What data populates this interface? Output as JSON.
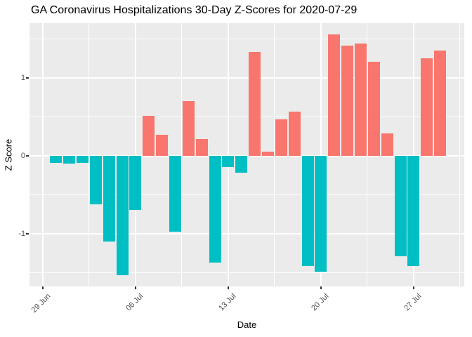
{
  "chart_data": {
    "type": "bar",
    "title": "GA Coronavirus Hospitalizations 30-Day Z-Scores for 2020-07-29",
    "xlabel": "Date",
    "ylabel": "Z Score",
    "x": [
      "2020-06-30",
      "2020-07-01",
      "2020-07-02",
      "2020-07-03",
      "2020-07-04",
      "2020-07-05",
      "2020-07-06",
      "2020-07-07",
      "2020-07-08",
      "2020-07-09",
      "2020-07-10",
      "2020-07-11",
      "2020-07-12",
      "2020-07-13",
      "2020-07-14",
      "2020-07-15",
      "2020-07-16",
      "2020-07-17",
      "2020-07-18",
      "2020-07-19",
      "2020-07-20",
      "2020-07-21",
      "2020-07-22",
      "2020-07-23",
      "2020-07-24",
      "2020-07-25",
      "2020-07-26",
      "2020-07-27",
      "2020-07-28",
      "2020-07-29"
    ],
    "values": [
      -0.09,
      -0.1,
      -0.09,
      -0.62,
      -1.1,
      -1.53,
      -0.69,
      0.51,
      0.27,
      -0.97,
      0.7,
      0.22,
      -1.37,
      -0.14,
      -0.22,
      1.33,
      0.05,
      0.47,
      0.57,
      -1.41,
      -1.49,
      1.56,
      1.41,
      1.44,
      1.21,
      0.29,
      -1.29,
      -1.41,
      1.25,
      1.35
    ],
    "x_tick_labels": [
      "29 Jun",
      "06 Jul",
      "13 Jul",
      "20 Jul",
      "27 Jul"
    ],
    "x_tick_day_offsets": [
      0,
      7,
      14,
      21,
      28
    ],
    "y_ticks": [
      -1,
      0,
      1
    ],
    "y_minor_ticks": [
      -1.5,
      -0.5,
      0.5,
      1.5
    ],
    "ylim": [
      -1.68,
      1.71
    ],
    "grid": true,
    "legend": false,
    "colors": {
      "positive_bar": "#F8766D",
      "negative_bar": "#00BFC4",
      "panel_background": "#EBEBEB",
      "gridline": "#FFFFFF",
      "axis_text": "#4D4D4D",
      "title_text": "#000000"
    }
  }
}
